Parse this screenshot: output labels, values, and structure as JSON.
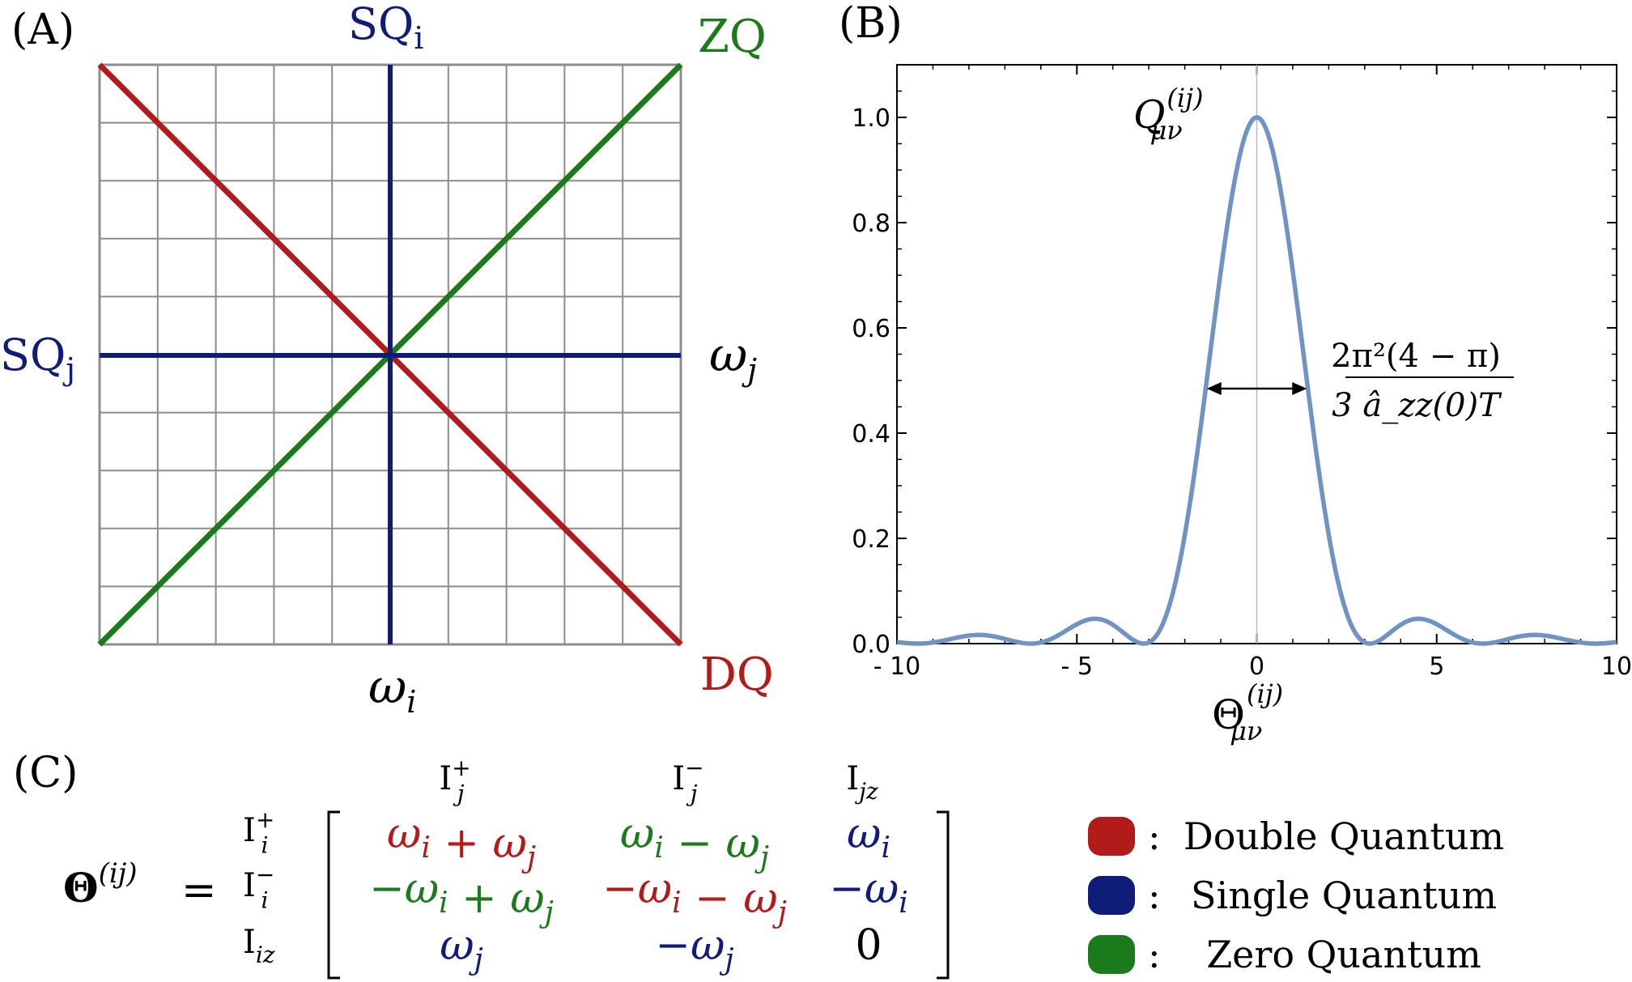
{
  "colors": {
    "dq": "#b31b1b",
    "sq": "#0f1d78",
    "zq": "#1b7a1b",
    "grid": "#8c8c8c",
    "curve": "#6f93c2",
    "axis": "#000000"
  },
  "panel_a": {
    "label": "(A)",
    "sq_i": "SQ",
    "sq_i_sub": "i",
    "sq_j": "SQ",
    "sq_j_sub": "j",
    "zq": "ZQ",
    "dq": "DQ",
    "omega_i": "ω",
    "omega_i_sub": "i",
    "omega_j": "ω",
    "omega_j_sub": "j"
  },
  "panel_b": {
    "label": "(B)",
    "peak_label": "Q",
    "peak_label_sup": "(ij)",
    "peak_label_sub": "μν",
    "width_label_numerator": "2π²(4 − π)",
    "width_label_denominator": "3 â_zz(0)T",
    "xlabel": "Θ",
    "xlabel_sup": "(ij)",
    "xlabel_sub": "μν"
  },
  "chart_data": {
    "type": "line",
    "function": "sinc^2",
    "series": [
      {
        "x": [
          -10,
          -9,
          -8,
          -7.73,
          -7,
          -6.28,
          -5,
          -4.49,
          -4,
          -3.14,
          -2.5,
          -2,
          -1.5,
          -1,
          -0.5,
          0,
          0.5,
          1,
          1.5,
          2,
          2.5,
          3.14,
          4,
          4.49,
          5,
          6.28,
          7,
          7.73,
          8,
          9,
          10
        ],
        "y": [
          0.003,
          0.002,
          0.015,
          0.016,
          0.009,
          0.0,
          0.037,
          0.047,
          0.036,
          0.0,
          0.057,
          0.207,
          0.441,
          0.708,
          0.919,
          1.0,
          0.919,
          0.708,
          0.441,
          0.207,
          0.057,
          0.0,
          0.036,
          0.047,
          0.037,
          0.0,
          0.009,
          0.016,
          0.015,
          0.002,
          0.003
        ]
      }
    ],
    "xlim": [
      -10,
      10
    ],
    "ylim": [
      0,
      1.1
    ],
    "xticks": [
      -10,
      -5,
      0,
      5,
      10
    ],
    "xtick_labels": [
      "- 10",
      "- 5",
      "0",
      "5",
      "10"
    ],
    "yticks": [
      0.0,
      0.2,
      0.4,
      0.6,
      0.8,
      1.0
    ],
    "ytick_labels": [
      "0.0",
      "0.2",
      "0.4",
      "0.6",
      "0.8",
      "1.0"
    ],
    "width_arrow_x": [
      -1.39,
      1.39
    ],
    "width_arrow_y": 0.5
  },
  "panel_c": {
    "label": "(C)",
    "theta": "Θ",
    "theta_sup": "(ij)",
    "equals": "=",
    "col_headers": [
      {
        "base": "I",
        "sup": "+",
        "sub": "j"
      },
      {
        "base": "I",
        "sup": "−",
        "sub": "j"
      },
      {
        "base": "I",
        "sup": "",
        "sub": "jz"
      }
    ],
    "row_headers": [
      {
        "base": "I",
        "sup": "+",
        "sub": "i"
      },
      {
        "base": "I",
        "sup": "−",
        "sub": "i"
      },
      {
        "base": "I",
        "sup": "",
        "sub": "iz"
      }
    ],
    "matrix": [
      [
        {
          "parts": [
            {
              "t": "ω",
              "s": "i"
            },
            {
              "t": " + "
            },
            {
              "t": "ω",
              "s": "j"
            }
          ],
          "color": "dq"
        },
        {
          "parts": [
            {
              "t": "ω",
              "s": "i"
            },
            {
              "t": " − "
            },
            {
              "t": "ω",
              "s": "j"
            }
          ],
          "color": "zq"
        },
        {
          "parts": [
            {
              "t": "ω",
              "s": "i"
            }
          ],
          "color": "sq"
        }
      ],
      [
        {
          "parts": [
            {
              "t": "−ω",
              "s": "i"
            },
            {
              "t": " + "
            },
            {
              "t": "ω",
              "s": "j"
            }
          ],
          "color": "zq"
        },
        {
          "parts": [
            {
              "t": "−ω",
              "s": "i"
            },
            {
              "t": " − "
            },
            {
              "t": "ω",
              "s": "j"
            }
          ],
          "color": "dq"
        },
        {
          "parts": [
            {
              "t": "−ω",
              "s": "i"
            }
          ],
          "color": "sq"
        }
      ],
      [
        {
          "parts": [
            {
              "t": "ω",
              "s": "j"
            }
          ],
          "color": "sq"
        },
        {
          "parts": [
            {
              "t": "−ω",
              "s": "j"
            }
          ],
          "color": "sq"
        },
        {
          "parts": [
            {
              "t": "0"
            }
          ],
          "color": "axis"
        }
      ]
    ],
    "legend": [
      {
        "color": "dq",
        "sep": ":",
        "label": "Double Quantum"
      },
      {
        "color": "sq",
        "sep": ":",
        "label": "Single Quantum"
      },
      {
        "color": "zq",
        "sep": ":",
        "label": "Zero Quantum"
      }
    ]
  }
}
